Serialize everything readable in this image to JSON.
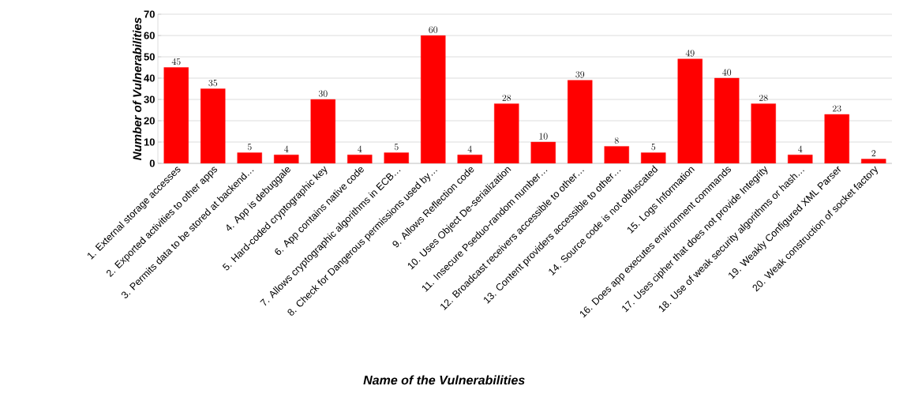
{
  "chart_data": {
    "type": "bar",
    "xlabel": "Name of the Vulnerabilities",
    "ylabel": "Number of Vulnerabilities",
    "categories": [
      "1. External storage accesses",
      "2. Exported activities to other apps",
      "3. Permits data to be stored at backend…",
      "4. App is debuggale",
      "5. Hard-coded cryptographic key",
      "6. App contains native code",
      "7. Allows cryptographic algorithms in ECB…",
      "8. Check for Dangerous permissions used by…",
      "9. Allows Reflection code",
      "10. Uses Object De-serialization",
      "11. Insecure Pseduo-random number…",
      "12. Broadcast receivers accessible to other…",
      "13. Content providers accessible to other…",
      "14. Source code is not obfuscated",
      "15. Logs Information",
      "16. Does app executes environment commands",
      "17. Uses cipher that does not provide Integrity",
      "18. Use of weak security algorithms or hash…",
      "19. Weakly Configured XML Parser",
      "20. Weak construction of socket factory"
    ],
    "values": [
      45,
      35,
      5,
      4,
      30,
      4,
      5,
      60,
      4,
      28,
      10,
      39,
      8,
      5,
      49,
      40,
      28,
      4,
      23,
      2
    ],
    "color": "#ff0000",
    "ylim": [
      0,
      70
    ],
    "yticks": [
      0,
      10,
      20,
      30,
      40,
      50,
      60,
      70
    ],
    "grid": "y",
    "data_labels": true
  }
}
